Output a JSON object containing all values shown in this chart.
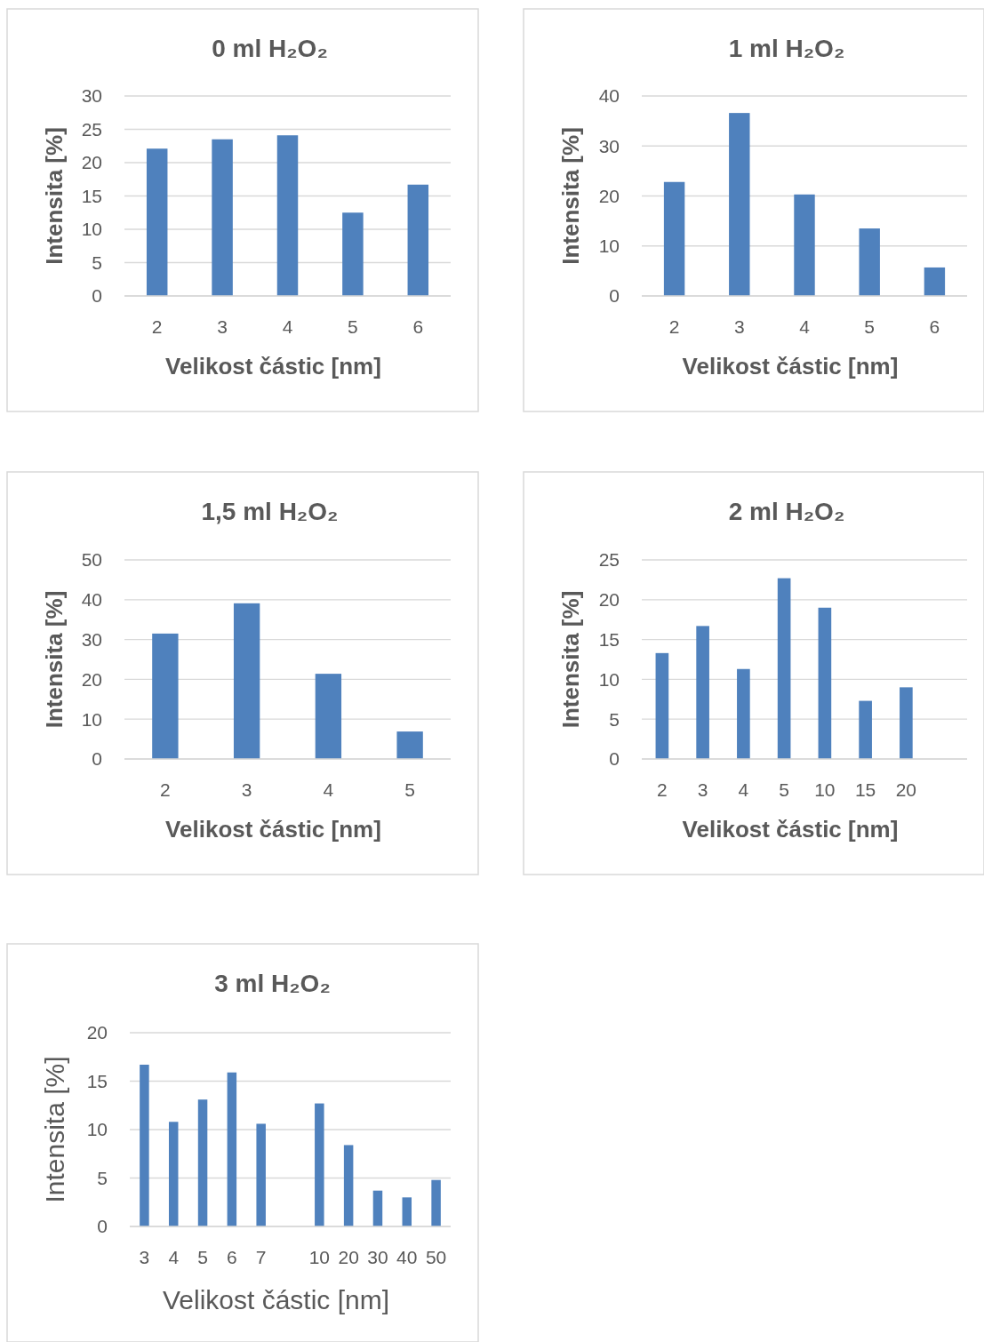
{
  "chart_data": [
    {
      "type": "bar",
      "title": "0 ml H₂O₂",
      "xlabel": "Velikost částic [nm]",
      "ylabel": "Intensita [%]",
      "categories": [
        "2",
        "3",
        "4",
        "5",
        "6"
      ],
      "values": [
        22.1,
        23.5,
        24.1,
        12.5,
        16.7
      ],
      "color": "#4f81bd",
      "ylim": [
        0,
        30
      ],
      "yticks": [
        0,
        5,
        10,
        15,
        20,
        25,
        30
      ],
      "grid": "y"
    },
    {
      "type": "bar",
      "title": "1 ml H₂O₂",
      "xlabel": "Velikost částic [nm]",
      "ylabel": "Intensita [%]",
      "categories": [
        "2",
        "3",
        "4",
        "5",
        "6"
      ],
      "values": [
        22.8,
        36.6,
        20.3,
        13.5,
        5.7
      ],
      "color": "#4f81bd",
      "ylim": [
        0,
        40
      ],
      "yticks": [
        0,
        10,
        20,
        30,
        40
      ],
      "grid": "y"
    },
    {
      "type": "bar",
      "title": "1,5 ml H₂O₂",
      "xlabel": "Velikost částic [nm]",
      "ylabel": "Intensita [%]",
      "categories": [
        "2",
        "3",
        "4",
        "5"
      ],
      "values": [
        31.5,
        39.1,
        21.4,
        6.9
      ],
      "color": "#4f81bd",
      "ylim": [
        0,
        50
      ],
      "yticks": [
        0,
        10,
        20,
        30,
        40,
        50
      ],
      "grid": "y"
    },
    {
      "type": "bar",
      "title": "2 ml H₂O₂",
      "xlabel": "Velikost částic [nm]",
      "ylabel": "Intensita [%]",
      "categories": [
        "2",
        "3",
        "4",
        "5",
        "10",
        "15",
        "20",
        null
      ],
      "values": [
        13.3,
        16.7,
        11.3,
        22.7,
        19.0,
        7.3,
        9.0,
        null
      ],
      "color": "#4f81bd",
      "ylim": [
        0,
        25
      ],
      "yticks": [
        0,
        5,
        10,
        15,
        20,
        25
      ],
      "grid": "y"
    },
    {
      "type": "bar",
      "title": "3 ml H₂O₂",
      "xlabel": "Velikost částic [nm]",
      "ylabel": "Intensita [%]",
      "categories": [
        "3",
        "4",
        "5",
        "6",
        "7",
        null,
        "10",
        "20",
        "30",
        "40",
        "50"
      ],
      "values": [
        16.7,
        10.8,
        13.1,
        15.9,
        10.6,
        null,
        12.7,
        8.4,
        3.7,
        3.0,
        4.8
      ],
      "color": "#4f81bd",
      "ylim": [
        0,
        20
      ],
      "yticks": [
        0,
        5,
        10,
        15,
        20
      ],
      "grid": "y"
    }
  ]
}
